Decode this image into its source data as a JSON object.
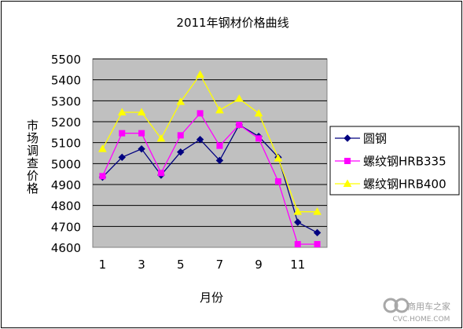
{
  "chart_data": {
    "type": "line",
    "title": "2011年钢材价格曲线",
    "xlabel": "月份",
    "ylabel": "市场调查价格",
    "x": [
      1,
      2,
      3,
      4,
      5,
      6,
      7,
      8,
      9,
      10,
      11,
      12
    ],
    "x_tick_labels": [
      "1",
      "",
      "3",
      "",
      "5",
      "",
      "7",
      "",
      "9",
      "",
      "11",
      ""
    ],
    "ylim": [
      4600,
      5500
    ],
    "y_ticks": [
      4600,
      4700,
      4800,
      4900,
      5000,
      5100,
      5200,
      5300,
      5400,
      5500
    ],
    "grid": "horizontal",
    "legend_position": "right",
    "series": [
      {
        "name": "圆钢",
        "color": "#000080",
        "marker": "diamond",
        "values": [
          4935,
          5030,
          5070,
          4945,
          5055,
          5115,
          5015,
          5185,
          5130,
          5030,
          4720,
          4670
        ]
      },
      {
        "name": "螺纹钢HRB335",
        "color": "#FF00FF",
        "marker": "square",
        "values": [
          4940,
          5145,
          5145,
          4955,
          5135,
          5240,
          5085,
          5185,
          5120,
          4915,
          4615,
          4615
        ]
      },
      {
        "name": "螺纹钢HRB400",
        "color": "#FFFF00",
        "marker": "triangle",
        "values": [
          5070,
          5245,
          5245,
          5120,
          5295,
          5425,
          5255,
          5310,
          5240,
          5025,
          4770,
          4770
        ]
      }
    ]
  },
  "watermark": {
    "brand_text": "商用车之家",
    "url_text": "CVC.HOME.COM"
  }
}
